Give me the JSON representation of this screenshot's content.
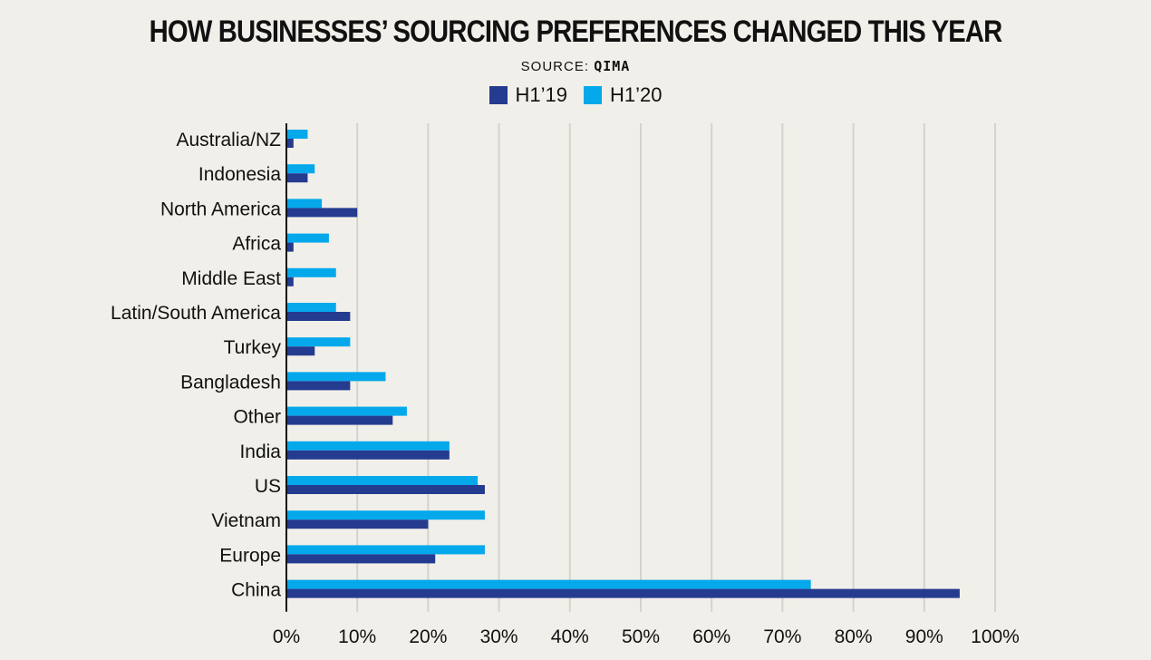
{
  "title": "HOW BUSINESSES’ SOURCING PREFERENCES CHANGED THIS YEAR",
  "source_label": "SOURCE: ",
  "source_name": "QIMA",
  "colors": {
    "h119": "#253b8f",
    "h120": "#05a9eb",
    "grid": "#d4d2cc",
    "axis": "#111111"
  },
  "chart_data": {
    "type": "bar",
    "orientation": "horizontal",
    "title": "HOW BUSINESSES’ SOURCING PREFERENCES CHANGED THIS YEAR",
    "xlabel": "",
    "ylabel": "",
    "xlim": [
      0,
      100
    ],
    "x_ticks": [
      0,
      10,
      20,
      30,
      40,
      50,
      60,
      70,
      80,
      90,
      100
    ],
    "x_tick_labels": [
      "0%",
      "10%",
      "20%",
      "30%",
      "40%",
      "50%",
      "60%",
      "70%",
      "80%",
      "90%",
      "100%"
    ],
    "grid": true,
    "legend_position": "top-center",
    "categories": [
      "Australia/NZ",
      "Indonesia",
      "North America",
      "Africa",
      "Middle East",
      "Latin/South America",
      "Turkey",
      "Bangladesh",
      "Other",
      "India",
      "US",
      "Vietnam",
      "Europe",
      "China"
    ],
    "series": [
      {
        "name": "H1’19",
        "color": "#253b8f",
        "values": [
          1,
          3,
          10,
          1,
          1,
          9,
          4,
          9,
          15,
          23,
          28,
          20,
          21,
          95
        ]
      },
      {
        "name": "H1’20",
        "color": "#05a9eb",
        "values": [
          3,
          4,
          5,
          6,
          7,
          7,
          9,
          14,
          17,
          23,
          27,
          28,
          28,
          74
        ]
      }
    ]
  }
}
